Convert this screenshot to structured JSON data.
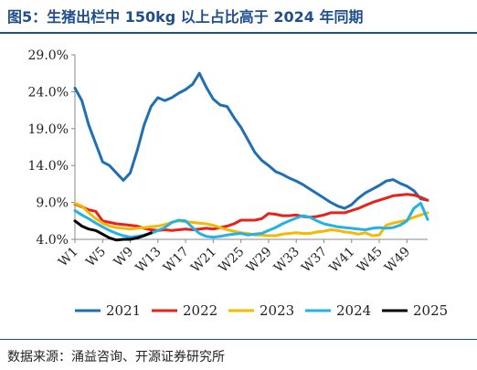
{
  "title": "图5：生猪出栏中 150kg 以上占比高于 2024 年同期",
  "source": "数据来源：涌益咨询、开源证券研究所",
  "chart_data": {
    "type": "line",
    "ylim": [
      4.0,
      29.0
    ],
    "yticks": [
      "29.0%",
      "24.0%",
      "19.0%",
      "14.0%",
      "9.0%",
      "4.0%"
    ],
    "ytick_values": [
      29,
      24,
      19,
      14,
      9,
      4
    ],
    "xticks": [
      "W1",
      "W5",
      "W9",
      "W13",
      "W17",
      "W21",
      "W25",
      "W29",
      "W33",
      "W37",
      "W41",
      "W45",
      "W49"
    ],
    "xtick_weeks": [
      1,
      5,
      9,
      13,
      17,
      21,
      25,
      29,
      33,
      37,
      41,
      45,
      49
    ],
    "legend_position": "bottom",
    "series": [
      {
        "name": "2021",
        "color": "#1f6fb4",
        "x": [
          1,
          2,
          3,
          4,
          5,
          6,
          7,
          8,
          9,
          10,
          11,
          12,
          13,
          14,
          15,
          16,
          17,
          18,
          19,
          20,
          21,
          22,
          23,
          24,
          25,
          26,
          27,
          28,
          29,
          30,
          31,
          32,
          33,
          34,
          35,
          36,
          37,
          38,
          39,
          40,
          41,
          42,
          43,
          44,
          45,
          46,
          47,
          48,
          49,
          50,
          51,
          52
        ],
        "values": [
          24.5,
          22.8,
          19.5,
          17.0,
          14.5,
          14.0,
          13.0,
          12.0,
          13.0,
          16.0,
          19.5,
          22.0,
          23.2,
          22.8,
          23.2,
          23.8,
          24.3,
          25.0,
          26.5,
          24.6,
          23.0,
          22.2,
          22.0,
          20.5,
          19.2,
          17.5,
          15.8,
          14.7,
          14.0,
          13.2,
          12.8,
          12.3,
          11.9,
          11.4,
          10.8,
          10.2,
          9.6,
          9.0,
          8.5,
          8.2,
          8.7,
          9.6,
          10.3,
          10.8,
          11.3,
          11.9,
          12.1,
          11.6,
          11.2,
          10.6,
          9.5,
          9.3
        ]
      },
      {
        "name": "2022",
        "color": "#e8221b",
        "x": [
          1,
          2,
          3,
          4,
          5,
          6,
          7,
          8,
          9,
          10,
          11,
          12,
          13,
          14,
          15,
          16,
          17,
          18,
          19,
          20,
          21,
          22,
          23,
          24,
          25,
          26,
          27,
          28,
          29,
          30,
          31,
          32,
          33,
          34,
          35,
          36,
          37,
          38,
          39,
          40,
          41,
          42,
          43,
          44,
          45,
          46,
          47,
          48,
          49,
          50,
          51,
          52
        ],
        "values": [
          8.8,
          8.4,
          8.0,
          7.8,
          6.5,
          6.3,
          6.1,
          6.0,
          5.9,
          5.8,
          5.5,
          5.3,
          5.2,
          5.3,
          5.2,
          5.3,
          5.4,
          5.3,
          5.4,
          5.5,
          5.4,
          5.6,
          5.8,
          6.1,
          6.6,
          6.6,
          6.6,
          6.8,
          7.5,
          7.4,
          7.2,
          7.2,
          7.3,
          7.1,
          7.0,
          7.1,
          7.3,
          7.6,
          7.6,
          7.6,
          7.9,
          8.2,
          8.6,
          9.0,
          9.3,
          9.6,
          9.9,
          10.0,
          10.1,
          10.0,
          9.7,
          9.3
        ]
      },
      {
        "name": "2023",
        "color": "#f6b800",
        "x": [
          1,
          2,
          3,
          4,
          5,
          6,
          7,
          8,
          9,
          10,
          11,
          12,
          13,
          14,
          15,
          16,
          17,
          18,
          19,
          20,
          21,
          22,
          23,
          24,
          25,
          26,
          27,
          28,
          29,
          30,
          31,
          32,
          33,
          34,
          35,
          36,
          37,
          38,
          39,
          40,
          41,
          42,
          43,
          44,
          45,
          46,
          47,
          48,
          49,
          50,
          51,
          52
        ],
        "values": [
          8.9,
          8.5,
          7.6,
          6.8,
          6.2,
          5.8,
          5.6,
          5.5,
          5.4,
          5.5,
          5.6,
          5.7,
          5.8,
          6.0,
          6.3,
          6.5,
          6.4,
          6.3,
          6.2,
          6.1,
          5.9,
          5.6,
          5.3,
          5.1,
          4.9,
          4.8,
          4.6,
          4.6,
          4.5,
          4.5,
          4.7,
          4.8,
          4.9,
          4.8,
          4.8,
          5.0,
          5.1,
          5.3,
          5.2,
          5.0,
          4.9,
          4.7,
          4.9,
          4.5,
          4.6,
          5.9,
          6.2,
          6.4,
          6.6,
          7.0,
          7.3,
          7.6
        ]
      },
      {
        "name": "2024",
        "color": "#21b2e8",
        "x": [
          1,
          2,
          3,
          4,
          5,
          6,
          7,
          8,
          9,
          10,
          11,
          12,
          13,
          14,
          15,
          16,
          17,
          18,
          19,
          20,
          21,
          22,
          23,
          24,
          25,
          26,
          27,
          28,
          29,
          30,
          31,
          32,
          33,
          34,
          35,
          36,
          37,
          38,
          39,
          40,
          41,
          42,
          43,
          44,
          45,
          46,
          47,
          48,
          49,
          50,
          51,
          52
        ],
        "values": [
          7.9,
          7.3,
          6.8,
          6.2,
          5.7,
          5.2,
          4.8,
          4.5,
          4.3,
          4.4,
          4.6,
          4.8,
          5.2,
          5.6,
          6.3,
          6.6,
          6.5,
          5.6,
          4.8,
          4.4,
          4.3,
          4.4,
          4.6,
          4.7,
          4.8,
          4.6,
          4.7,
          4.8,
          5.2,
          5.6,
          6.1,
          6.5,
          6.9,
          7.2,
          7.0,
          6.5,
          6.1,
          5.9,
          5.7,
          5.6,
          5.5,
          5.4,
          5.3,
          5.5,
          5.6,
          5.5,
          5.6,
          5.9,
          6.5,
          8.2,
          8.9,
          6.7
        ]
      },
      {
        "name": "2025",
        "color": "#000000",
        "x": [
          1,
          2,
          3,
          4,
          5,
          6,
          7,
          8,
          9,
          10,
          11,
          12
        ],
        "values": [
          6.5,
          5.8,
          5.4,
          5.2,
          4.7,
          4.2,
          3.9,
          4.0,
          4.0,
          4.2,
          4.5,
          4.9
        ]
      }
    ]
  }
}
